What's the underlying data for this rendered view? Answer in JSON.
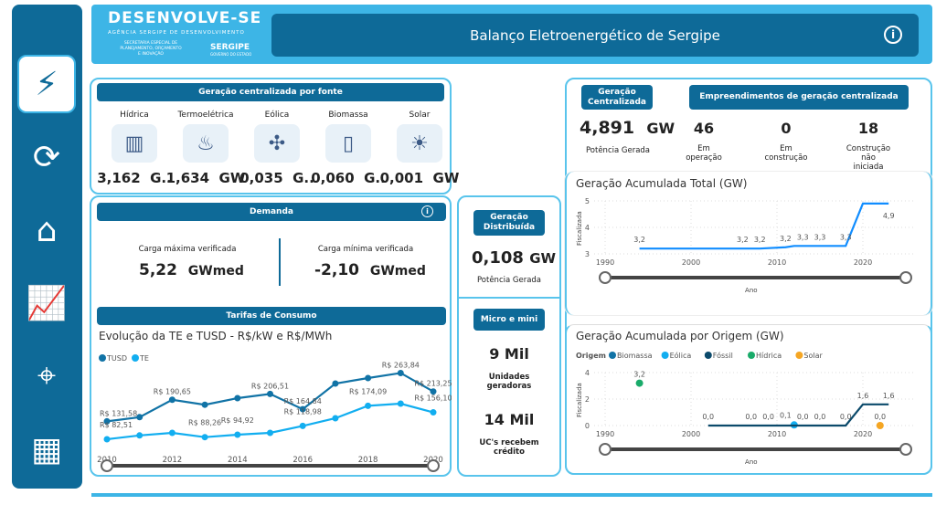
{
  "app": {
    "title": "Balanço Eletroenergético de Sergipe",
    "logo": "DESENVOLVE-SE",
    "logo_sub": "AGÊNCIA SERGIPE DE DESENVOLVIMENTO",
    "logo_sec": "SECRETARIA ESPECIAL DE PLANEJAMENTO, ORÇAMENTO E INOVAÇÃO",
    "logo_state": "SERGIPE",
    "logo_state_sub": "GOVERNO DO ESTADO",
    "info_icon": "info-icon"
  },
  "sidebar": {
    "items": [
      {
        "icon": "energy-report-icon",
        "active": true
      },
      {
        "icon": "energy-cycle-icon"
      },
      {
        "icon": "home-energy-icon"
      },
      {
        "icon": "growth-chart-icon"
      },
      {
        "icon": "map-pin-icon"
      },
      {
        "icon": "dashboard-icon"
      }
    ]
  },
  "colors": {
    "primary": "#0e6a98",
    "accent": "#3db5e6",
    "tusd": "#1173a6",
    "te": "#12aef0",
    "biomassa": "#1173a6",
    "eolica": "#12aef0",
    "fossil": "#0b4a6b",
    "hidrica": "#1aab6a",
    "solar": "#f5a623",
    "total": "#118dff"
  },
  "fontes": {
    "title": "Geração centralizada por fonte",
    "items": [
      {
        "label": "Hídrica",
        "value": "3,162",
        "unit": "G..",
        "icon": "hydro-dam-icon"
      },
      {
        "label": "Termoelétrica",
        "value": "1,634",
        "unit": "GW",
        "icon": "flame-icon"
      },
      {
        "label": "Eólica",
        "value": "0,035",
        "unit": "G..",
        "icon": "wind-turbine-icon"
      },
      {
        "label": "Biomassa",
        "value": "0,060",
        "unit": "G..",
        "icon": "corn-battery-icon"
      },
      {
        "label": "Solar",
        "value": "0,001",
        "unit": "GW",
        "icon": "solar-panel-icon"
      }
    ]
  },
  "centralizada": {
    "title": "Geração Centralizada",
    "value": "4,891",
    "unit": "GW",
    "caption": "Potência Gerada"
  },
  "empreendimentos": {
    "title": "Empreendimentos de geração centralizada",
    "items": [
      {
        "value": "46",
        "label": "Em operação"
      },
      {
        "value": "0",
        "label": "Em construção"
      },
      {
        "value": "18",
        "label": "Construção não iniciada"
      }
    ]
  },
  "demanda": {
    "title": "Demanda",
    "max_label": "Carga máxima verificada",
    "max_value": "5,22",
    "max_unit": "GWmed",
    "min_label": "Carga mínima verificada",
    "min_value": "-2,10",
    "min_unit": "GWmed"
  },
  "distribuida": {
    "title": "Geração Distribuída",
    "value": "0,108",
    "unit": "GW",
    "caption": "Potência Gerada"
  },
  "micro": {
    "title": "Micro e mini",
    "v1": "9 Mil",
    "l1": "Unidades geradoras",
    "v2": "14 Mil",
    "l2": "UC's recebem crédito"
  },
  "tarifas": {
    "title": "Tarifas de Consumo"
  },
  "chart_data": [
    {
      "type": "line",
      "title": "Evolução da TE e TUSD - R$/kW e R$/MWh",
      "x": [
        2010,
        2011,
        2012,
        2013,
        2014,
        2015,
        2016,
        2017,
        2018,
        2019,
        2020
      ],
      "xticks": [
        "2010",
        "2012",
        "2014",
        "2016",
        "2018",
        "2020"
      ],
      "series": [
        {
          "name": "TUSD",
          "values": [
            131.58,
            143,
            190.65,
            177,
            195,
            206.51,
            164.84,
            235,
            250,
            263.84,
            213.25
          ],
          "labels": [
            "R$ 131,58",
            null,
            "R$ 190,65",
            null,
            null,
            "R$ 206,51",
            "R$ 164,84",
            null,
            null,
            "R$ 263,84",
            "R$ 213,25"
          ]
        },
        {
          "name": "TE",
          "values": [
            82.51,
            93,
            100,
            88.26,
            94.92,
            100,
            118.98,
            140,
            174.09,
            180,
            156.1
          ],
          "labels": [
            "R$ 82,51",
            null,
            null,
            "R$ 88,26",
            "R$ 94,92",
            null,
            "R$ 118,98",
            null,
            "R$ 174,09",
            null,
            "R$ 156,10"
          ]
        }
      ]
    },
    {
      "type": "line",
      "title": "Geração Acumulada Total (GW)",
      "xlabel": "Ano",
      "ylabel": "Fiscalizada",
      "xlim": [
        1988,
        2026
      ],
      "ylim": [
        3,
        5
      ],
      "xticks": [
        "1990",
        "2000",
        "2010",
        "2020"
      ],
      "yticks": [
        "3",
        "4",
        "5"
      ],
      "series": [
        {
          "values": [
            [
              1994,
              3.2
            ],
            [
              2006,
              3.2
            ],
            [
              2008,
              3.2
            ],
            [
              2011,
              3.25
            ],
            [
              2012,
              3.3
            ],
            [
              2015,
              3.3
            ],
            [
              2018,
              3.3
            ],
            [
              2020,
              4.9
            ],
            [
              2023,
              4.9
            ]
          ],
          "labels": [
            [
              1994,
              3.2,
              "3,2"
            ],
            [
              2006,
              3.2,
              "3,2"
            ],
            [
              2008,
              3.2,
              "3,2"
            ],
            [
              2011,
              3.25,
              "3,2"
            ],
            [
              2013,
              3.3,
              "3,3"
            ],
            [
              2015,
              3.3,
              "3,3"
            ],
            [
              2018,
              3.3,
              "3,3"
            ],
            [
              2023,
              4.9,
              "4,9"
            ]
          ]
        }
      ]
    },
    {
      "type": "line",
      "title": "Geração Acumulada por Origem (GW)",
      "legend_title": "Origem",
      "xlabel": "Ano",
      "ylabel": "Fiscalizada",
      "xlim": [
        1988,
        2026
      ],
      "ylim": [
        0,
        4
      ],
      "xticks": [
        "1990",
        "2000",
        "2010",
        "2020"
      ],
      "yticks": [
        "0",
        "2",
        "4"
      ],
      "series": [
        {
          "name": "Biomassa",
          "values": []
        },
        {
          "name": "Eólica",
          "values": [
            [
              2012,
              0.05
            ]
          ],
          "labels": [
            [
              2011,
              0.1,
              "0,1"
            ]
          ]
        },
        {
          "name": "Fóssil",
          "values": [
            [
              2002,
              0
            ],
            [
              2018,
              0
            ],
            [
              2020,
              1.6
            ],
            [
              2023,
              1.6
            ]
          ],
          "labels": [
            [
              2002,
              0,
              "0,0"
            ],
            [
              2007,
              0,
              "0,0"
            ],
            [
              2009,
              0,
              "0,0"
            ],
            [
              2013,
              0,
              "0,0"
            ],
            [
              2015,
              0,
              "0,0"
            ],
            [
              2018,
              0,
              "0,0"
            ],
            [
              2020,
              1.6,
              "1,6"
            ],
            [
              2023,
              1.6,
              "1,6"
            ]
          ]
        },
        {
          "name": "Hídrica",
          "values": [
            [
              1994,
              3.2
            ]
          ],
          "labels": [
            [
              1994,
              3.2,
              "3,2"
            ]
          ]
        },
        {
          "name": "Solar",
          "values": [
            [
              2022,
              0
            ]
          ],
          "labels": [
            [
              2022,
              0,
              "0,0"
            ]
          ]
        }
      ]
    }
  ]
}
